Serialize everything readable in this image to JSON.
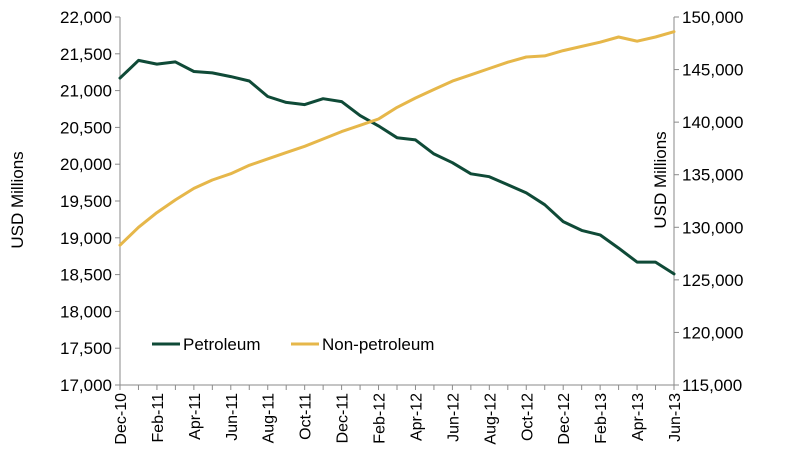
{
  "chart_data": {
    "type": "line",
    "x": [
      "Dec-10",
      "Jan-11",
      "Feb-11",
      "Mar-11",
      "Apr-11",
      "May-11",
      "Jun-11",
      "Jul-11",
      "Aug-11",
      "Sep-11",
      "Oct-11",
      "Nov-11",
      "Dec-11",
      "Jan-12",
      "Feb-12",
      "Mar-12",
      "Apr-12",
      "May-12",
      "Jun-12",
      "Jul-12",
      "Aug-12",
      "Sep-12",
      "Oct-12",
      "Nov-12",
      "Dec-12",
      "Jan-13",
      "Feb-13",
      "Mar-13",
      "Apr-13",
      "May-13",
      "Jun-13"
    ],
    "x_tick_labels": [
      "Dec-10",
      "Feb-11",
      "Apr-11",
      "Jun-11",
      "Aug-11",
      "Oct-11",
      "Dec-11",
      "Feb-12",
      "Apr-12",
      "Jun-12",
      "Aug-12",
      "Oct-12",
      "Dec-12",
      "Feb-13",
      "Apr-13",
      "Jun-13"
    ],
    "series": [
      {
        "name": "Petroleum",
        "axis": "left",
        "color": "#0f4a37",
        "values": [
          21170,
          21410,
          21360,
          21390,
          21260,
          21240,
          21190,
          21130,
          20920,
          20840,
          20810,
          20890,
          20850,
          20660,
          20520,
          20360,
          20330,
          20140,
          20020,
          19870,
          19830,
          19720,
          19610,
          19450,
          19220,
          19100,
          19040,
          18860,
          18670,
          18670,
          18510
        ]
      },
      {
        "name": "Non-petroleum",
        "axis": "right",
        "color": "#e6b74a",
        "values": [
          128300,
          130000,
          131400,
          132600,
          133700,
          134500,
          135100,
          135900,
          136500,
          137100,
          137700,
          138400,
          139100,
          139700,
          140300,
          141400,
          142300,
          143100,
          143900,
          144500,
          145100,
          145700,
          146200,
          146300,
          146800,
          147200,
          147600,
          148100,
          147700,
          148100,
          148600
        ]
      }
    ],
    "y_left": {
      "label": "USD Millions",
      "lim": [
        17000,
        22000
      ],
      "tick_labels": [
        "17,000",
        "17,500",
        "18,000",
        "18,500",
        "19,000",
        "19,500",
        "20,000",
        "20,500",
        "21,000",
        "21,500",
        "22,000"
      ]
    },
    "y_right": {
      "label": "USD Millions",
      "lim": [
        115000,
        150000
      ],
      "tick_labels": [
        "115,000",
        "120,000",
        "125,000",
        "130,000",
        "135,000",
        "140,000",
        "145,000",
        "150,000"
      ]
    },
    "legend_position": "bottom-left",
    "grid": false
  }
}
